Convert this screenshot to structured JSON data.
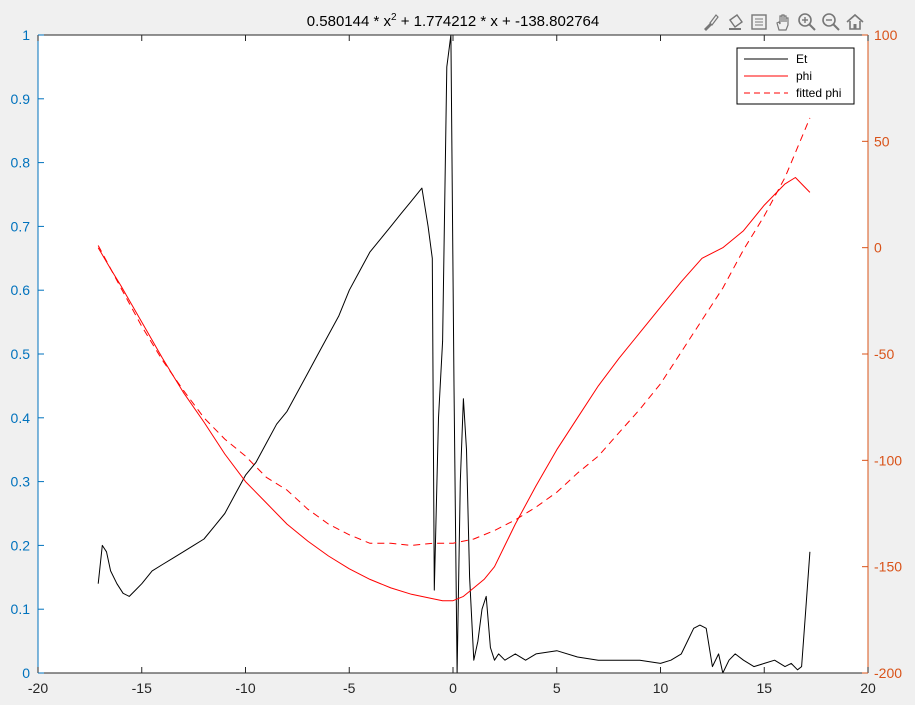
{
  "toolbar": {
    "icons": [
      "brush-icon",
      "paint-bucket-icon",
      "legend-toggle-icon",
      "pan-hand-icon",
      "zoom-in-icon",
      "zoom-out-icon",
      "home-icon"
    ]
  },
  "colors": {
    "background": "#f0f0f0",
    "axes_bg": "#ffffff",
    "left_axis": "#0072bd",
    "right_axis": "#d95319",
    "et": "#000000",
    "phi": "#ff0000"
  },
  "chart_data": {
    "type": "line",
    "title": "0.580144 * x2 + 1.774212 * x + -138.802764",
    "title_parts": {
      "before": "0.580144 * x",
      "superscript": "2",
      "after": " + 1.774212 * x + -138.802764"
    },
    "xlim": [
      -20,
      20
    ],
    "xticks": [
      -20,
      -15,
      -10,
      -5,
      0,
      5,
      10,
      15,
      20
    ],
    "ylim_left": [
      0,
      1
    ],
    "yticks_left": [
      0,
      0.1,
      0.2,
      0.3,
      0.4,
      0.5,
      0.6,
      0.7,
      0.8,
      0.9,
      1
    ],
    "ylim_right": [
      -200,
      100
    ],
    "yticks_right": [
      -200,
      -150,
      -100,
      -50,
      0,
      50,
      100
    ],
    "grid": false,
    "legend": {
      "location": "top-right",
      "entries": [
        "Et",
        "phi",
        "fitted phi"
      ]
    },
    "series": [
      {
        "name": "Et",
        "axis": "left",
        "color": "#000000",
        "style": "solid",
        "x": [
          -17.1,
          -16.9,
          -16.7,
          -16.5,
          -16.2,
          -15.9,
          -15.6,
          -15.3,
          -15.0,
          -14.5,
          -14.0,
          -13.5,
          -13.0,
          -12.5,
          -12.0,
          -11.5,
          -11.0,
          -10.5,
          -10.0,
          -9.5,
          -9.0,
          -8.5,
          -8.0,
          -7.5,
          -7.0,
          -6.5,
          -6.0,
          -5.5,
          -5.0,
          -4.5,
          -4.0,
          -3.5,
          -3.0,
          -2.5,
          -2.0,
          -1.5,
          -1.2,
          -1.0,
          -0.9,
          -0.7,
          -0.5,
          -0.3,
          -0.1,
          0.05,
          0.2,
          0.35,
          0.5,
          0.65,
          0.8,
          1.0,
          1.2,
          1.4,
          1.6,
          1.8,
          2.0,
          2.2,
          2.5,
          3.0,
          3.5,
          4.0,
          5.0,
          6.0,
          7.0,
          8.0,
          9.0,
          10.0,
          10.5,
          11.0,
          11.3,
          11.6,
          11.9,
          12.2,
          12.5,
          12.8,
          13.0,
          13.3,
          13.6,
          14.0,
          14.5,
          15.0,
          15.5,
          16.0,
          16.3,
          16.6,
          16.8,
          17.0,
          17.2
        ],
        "y": [
          0.14,
          0.2,
          0.19,
          0.16,
          0.14,
          0.125,
          0.12,
          0.13,
          0.14,
          0.16,
          0.17,
          0.18,
          0.19,
          0.2,
          0.21,
          0.23,
          0.25,
          0.28,
          0.31,
          0.33,
          0.36,
          0.39,
          0.41,
          0.44,
          0.47,
          0.5,
          0.53,
          0.56,
          0.6,
          0.63,
          0.66,
          0.68,
          0.7,
          0.72,
          0.74,
          0.76,
          0.7,
          0.65,
          0.13,
          0.4,
          0.52,
          0.95,
          1.0,
          0.45,
          0.0,
          0.3,
          0.43,
          0.35,
          0.15,
          0.02,
          0.05,
          0.1,
          0.12,
          0.04,
          0.02,
          0.03,
          0.02,
          0.03,
          0.02,
          0.03,
          0.035,
          0.025,
          0.02,
          0.02,
          0.02,
          0.015,
          0.02,
          0.03,
          0.05,
          0.07,
          0.075,
          0.07,
          0.01,
          0.03,
          0.0,
          0.02,
          0.03,
          0.02,
          0.01,
          0.015,
          0.02,
          0.01,
          0.015,
          0.005,
          0.01,
          0.1,
          0.19
        ]
      },
      {
        "name": "phi",
        "axis": "right",
        "color": "#ff0000",
        "style": "solid",
        "x": [
          -17.1,
          -16.5,
          -16.0,
          -15.0,
          -14.0,
          -13.0,
          -12.0,
          -11.0,
          -10.0,
          -9.0,
          -8.0,
          -7.0,
          -6.0,
          -5.0,
          -4.0,
          -3.0,
          -2.0,
          -1.0,
          -0.5,
          0.0,
          0.5,
          1.0,
          1.5,
          2.0,
          2.5,
          3.0,
          4.0,
          5.0,
          6.0,
          7.0,
          8.0,
          9.0,
          10.0,
          11.0,
          12.0,
          13.0,
          14.0,
          15.0,
          16.0,
          16.5,
          16.8,
          17.2
        ],
        "y": [
          0,
          -10,
          -18,
          -35,
          -52,
          -68,
          -82,
          -97,
          -110,
          -120,
          -130,
          -138,
          -145,
          -151,
          -156,
          -160,
          -163,
          -165,
          -166,
          -166,
          -164,
          -160,
          -156,
          -150,
          -140,
          -130,
          -112,
          -95,
          -80,
          -65,
          -52,
          -40,
          -28,
          -16,
          -5,
          0,
          8,
          20,
          30,
          33,
          30,
          26
        ]
      },
      {
        "name": "fitted phi",
        "axis": "right",
        "color": "#ff0000",
        "style": "dashed",
        "x": [
          -17.1,
          -16.0,
          -15.0,
          -14.0,
          -13.0,
          -12.0,
          -11.0,
          -10.0,
          -9.0,
          -8.0,
          -7.0,
          -6.0,
          -5.0,
          -4.0,
          -3.0,
          -2.0,
          -1.0,
          0.0,
          1.0,
          2.0,
          3.0,
          4.0,
          5.0,
          6.0,
          7.0,
          8.0,
          9.0,
          10.0,
          11.0,
          12.0,
          13.0,
          14.0,
          15.0,
          16.0,
          17.2
        ],
        "y": [
          1,
          -19,
          -37,
          -53,
          -67,
          -80,
          -90,
          -98,
          -108,
          -114,
          -123,
          -130,
          -135,
          -139,
          -139,
          -140,
          -139,
          -139,
          -137,
          -133,
          -128,
          -122,
          -115,
          -106,
          -98,
          -87,
          -76,
          -64,
          -49,
          -34,
          -19,
          -1,
          15,
          33,
          61
        ]
      }
    ]
  }
}
